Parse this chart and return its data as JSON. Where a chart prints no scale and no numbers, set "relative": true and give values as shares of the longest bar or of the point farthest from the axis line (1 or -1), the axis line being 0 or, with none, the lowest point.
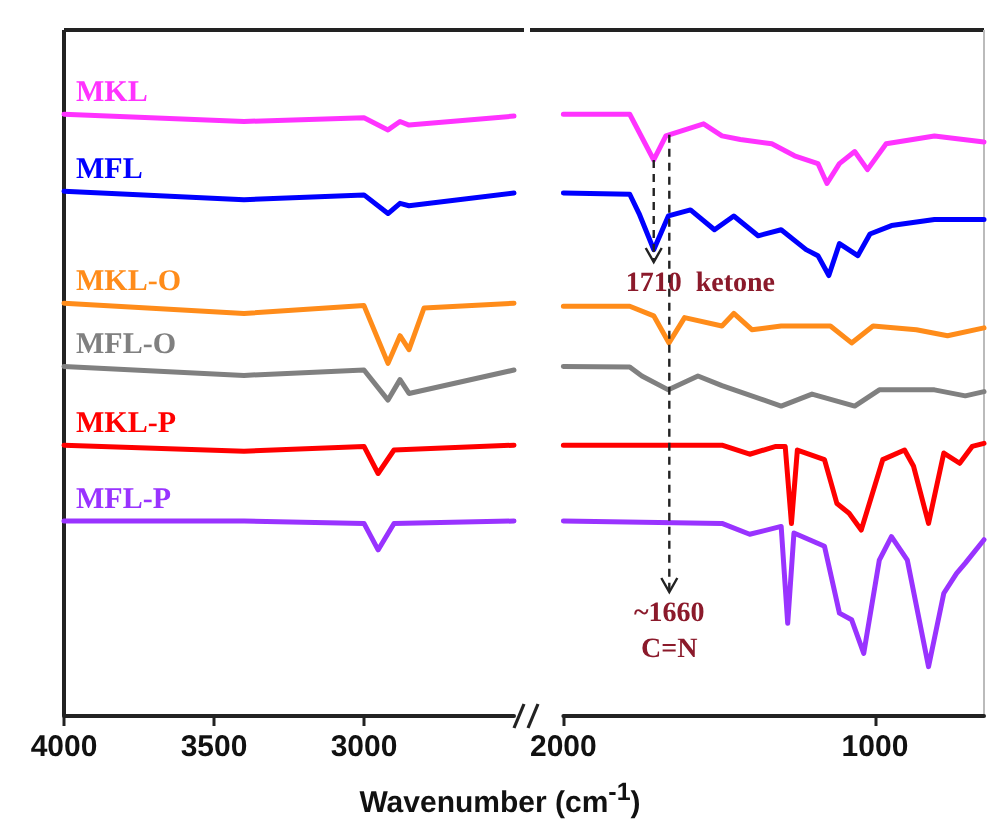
{
  "chart_data": [
    {
      "type": "line",
      "relative": true,
      "xlim": [
        4000,
        2500
      ],
      "xticks": [
        4000,
        3500,
        3000
      ],
      "xlabel": "Wavenumber (cm$^{-1}$)",
      "series": [
        {
          "name": "MKL",
          "color": "#ff33ff",
          "x": [
            4000,
            3400,
            3000,
            2920,
            2880,
            2850,
            2500
          ],
          "values": [
            1.0,
            0.988,
            0.994,
            0.974,
            0.988,
            0.982,
            0.997
          ]
        },
        {
          "name": "MFL",
          "color": "#0000ff",
          "x": [
            4000,
            3400,
            3000,
            2920,
            2880,
            2850,
            2500
          ],
          "values": [
            0.872,
            0.858,
            0.866,
            0.835,
            0.852,
            0.848,
            0.869
          ]
        },
        {
          "name": "MKL-O",
          "color": "#ff8c1a",
          "x": [
            4000,
            3400,
            3000,
            2920,
            2880,
            2850,
            2800,
            2500
          ],
          "values": [
            0.686,
            0.669,
            0.682,
            0.586,
            0.632,
            0.609,
            0.678,
            0.686
          ]
        },
        {
          "name": "MFL-O",
          "color": "#808080",
          "x": [
            4000,
            3400,
            3000,
            2920,
            2880,
            2850,
            2500
          ],
          "values": [
            0.581,
            0.566,
            0.575,
            0.525,
            0.559,
            0.536,
            0.575
          ]
        },
        {
          "name": "MKL-P",
          "color": "#ff0000",
          "x": [
            4000,
            3400,
            3000,
            2953,
            2900,
            2500
          ],
          "values": [
            0.45,
            0.44,
            0.448,
            0.403,
            0.442,
            0.45
          ]
        },
        {
          "name": "MFL-P",
          "color": "#9933ff",
          "x": [
            4000,
            3400,
            3000,
            2953,
            2900,
            2500
          ],
          "values": [
            0.324,
            0.324,
            0.32,
            0.276,
            0.32,
            0.324
          ]
        }
      ]
    },
    {
      "type": "line",
      "relative": true,
      "xlim": [
        2000,
        650
      ],
      "xticks": [
        2000,
        1000
      ],
      "ref_lines": [
        {
          "axis": "x",
          "value": 1710,
          "label": "1710  ketone",
          "line_style": "dashed",
          "color": "#222222"
        },
        {
          "axis": "x",
          "value": 1660,
          "label": "~1660\nC=N",
          "line_style": "dashed",
          "color": "#222222"
        }
      ],
      "series": [
        {
          "color": "#ff33ff",
          "x": [
            2000,
            1787,
            1710,
            1671,
            1550,
            1491,
            1432,
            1331,
            1258,
            1183,
            1154,
            1114,
            1065,
            1024,
            964,
            809,
            650
          ],
          "values": [
            1.0,
            1.0,
            0.924,
            0.964,
            0.984,
            0.964,
            0.958,
            0.951,
            0.931,
            0.918,
            0.885,
            0.918,
            0.938,
            0.908,
            0.951,
            0.964,
            0.954
          ]
        },
        {
          "color": "#0000ff",
          "x": [
            2000,
            1787,
            1757,
            1710,
            1663,
            1592,
            1515,
            1453,
            1375,
            1301,
            1221,
            1183,
            1148,
            1114,
            1055,
            1016,
            947,
            809,
            650
          ],
          "values": [
            0.869,
            0.867,
            0.835,
            0.775,
            0.831,
            0.841,
            0.808,
            0.831,
            0.798,
            0.808,
            0.775,
            0.765,
            0.732,
            0.785,
            0.765,
            0.801,
            0.815,
            0.825,
            0.825
          ]
        },
        {
          "color": "#ff8c1a",
          "x": [
            2000,
            1787,
            1710,
            1661,
            1611,
            1491,
            1453,
            1395,
            1301,
            1143,
            1075,
            1006,
            867,
            767,
            650
          ],
          "values": [
            0.681,
            0.681,
            0.665,
            0.62,
            0.662,
            0.648,
            0.669,
            0.642,
            0.648,
            0.648,
            0.62,
            0.648,
            0.642,
            0.632,
            0.645
          ]
        },
        {
          "color": "#808080",
          "x": [
            2000,
            1787,
            1748,
            1663,
            1568,
            1491,
            1301,
            1202,
            1065,
            986,
            809,
            710,
            650
          ],
          "values": [
            0.581,
            0.58,
            0.565,
            0.542,
            0.565,
            0.549,
            0.515,
            0.535,
            0.515,
            0.542,
            0.542,
            0.532,
            0.539
          ]
        },
        {
          "color": "#ff0000",
          "x": [
            2000,
            1491,
            1402,
            1318,
            1288,
            1268,
            1249,
            1162,
            1122,
            1083,
            1044,
            975,
            905,
            876,
            828,
            779,
            728,
            688,
            650
          ],
          "values": [
            0.45,
            0.45,
            0.435,
            0.448,
            0.448,
            0.32,
            0.442,
            0.426,
            0.353,
            0.337,
            0.309,
            0.426,
            0.442,
            0.415,
            0.32,
            0.437,
            0.42,
            0.448,
            0.453
          ]
        },
        {
          "color": "#9933ff",
          "x": [
            2000,
            1491,
            1402,
            1301,
            1280,
            1260,
            1162,
            1114,
            1075,
            1036,
            986,
            947,
            896,
            828,
            779,
            738,
            710,
            650
          ],
          "values": [
            0.324,
            0.32,
            0.302,
            0.315,
            0.154,
            0.304,
            0.282,
            0.171,
            0.16,
            0.104,
            0.259,
            0.298,
            0.259,
            0.082,
            0.204,
            0.237,
            0.254,
            0.293
          ]
        }
      ]
    }
  ]
}
